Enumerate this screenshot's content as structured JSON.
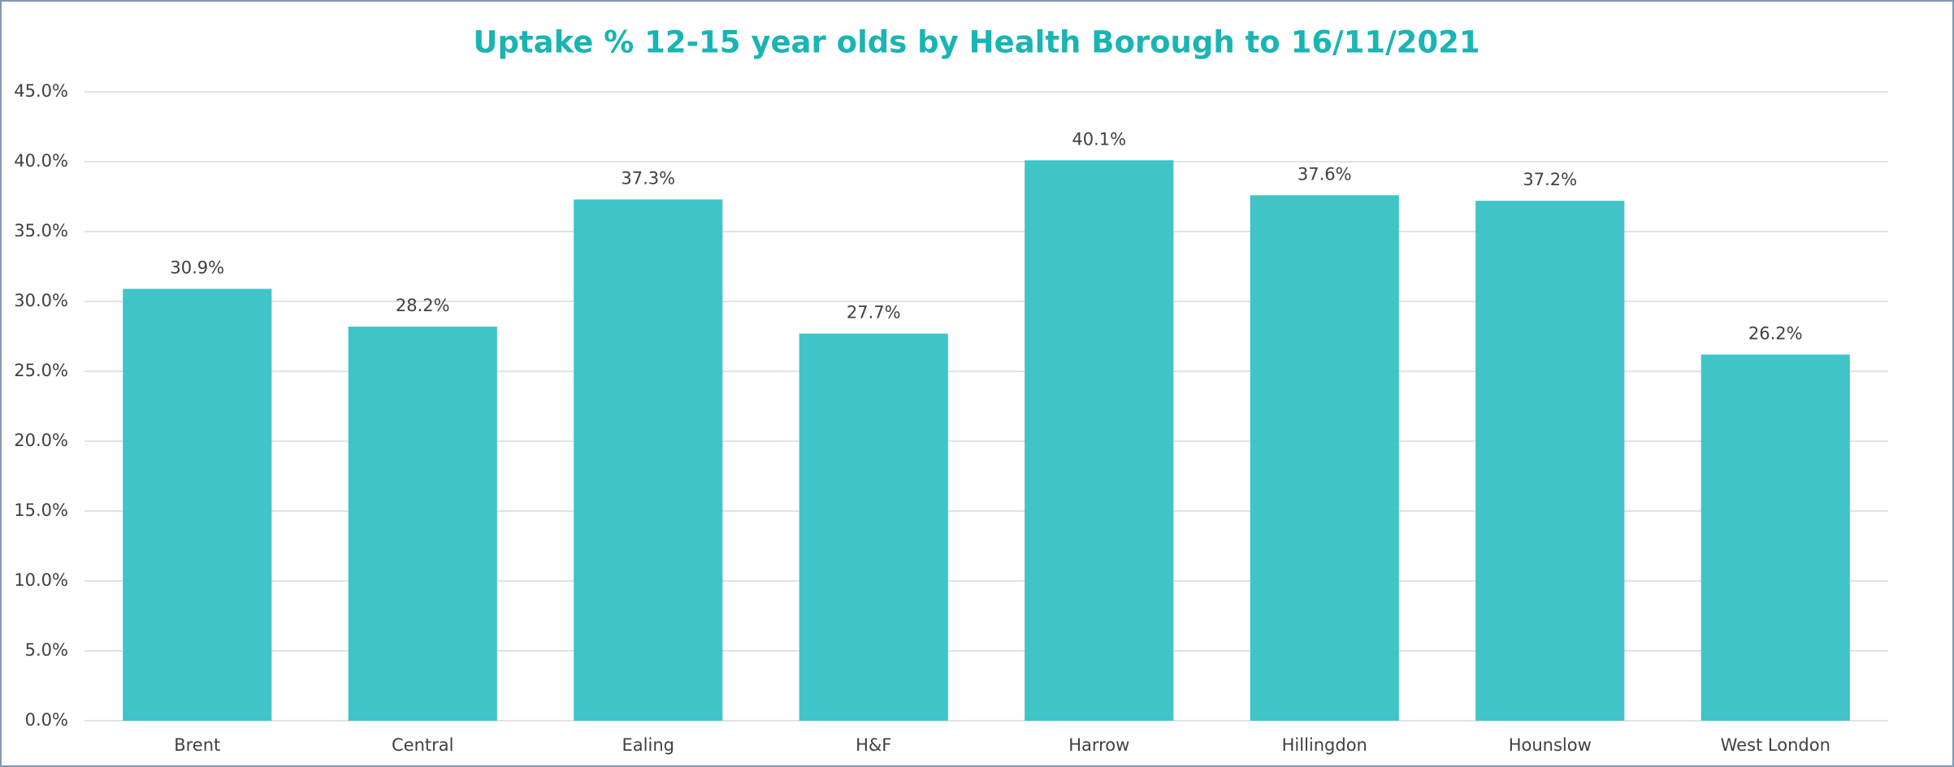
{
  "chart_data": {
    "type": "bar",
    "title": "Uptake % 12-15 year olds by Health Borough to 16/11/2021",
    "categories": [
      "Brent",
      "Central",
      "Ealing",
      "H&F",
      "Harrow",
      "Hillingdon",
      "Hounslow",
      "West London"
    ],
    "values": [
      30.9,
      28.2,
      37.3,
      27.7,
      40.1,
      37.6,
      37.2,
      26.2
    ],
    "value_labels": [
      "30.9%",
      "28.2%",
      "37.3%",
      "27.7%",
      "40.1%",
      "37.6%",
      "37.2%",
      "26.2%"
    ],
    "color": "#40c4c8",
    "ylim": [
      0,
      45
    ],
    "yticks": [
      {
        "value": 0,
        "label": "0.0%"
      },
      {
        "value": 5,
        "label": "5.0%"
      },
      {
        "value": 10,
        "label": "10.0%"
      },
      {
        "value": 15,
        "label": "15.0%"
      },
      {
        "value": 20,
        "label": "20.0%"
      },
      {
        "value": 25,
        "label": "25.0%"
      },
      {
        "value": 30,
        "label": "30.0%"
      },
      {
        "value": 35,
        "label": "35.0%"
      },
      {
        "value": 40,
        "label": "40.0%"
      },
      {
        "value": 45,
        "label": "45.0%"
      }
    ],
    "grid": true
  }
}
